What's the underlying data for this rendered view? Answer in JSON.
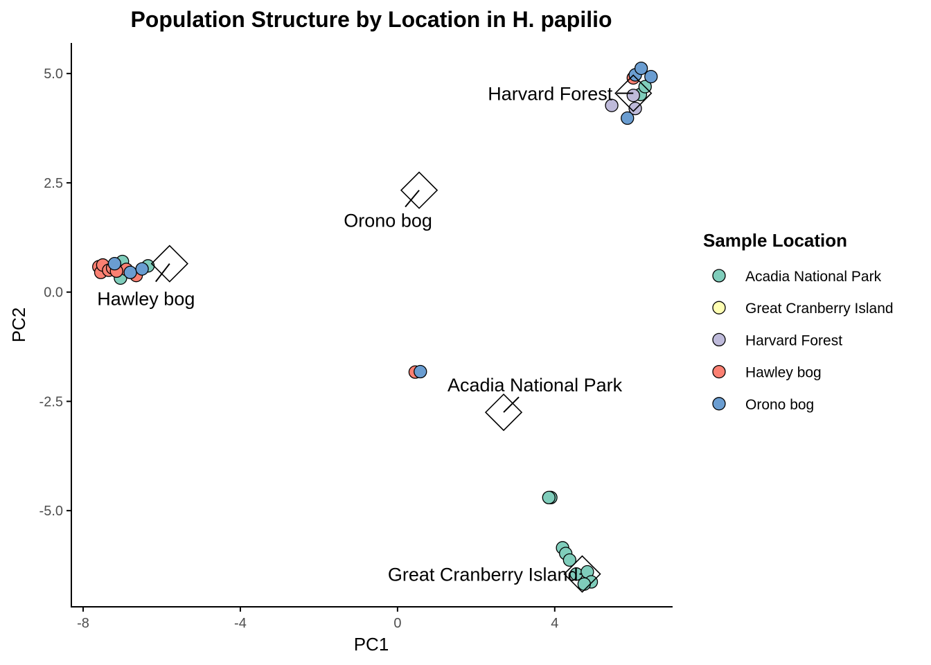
{
  "chart_data": {
    "type": "scatter",
    "title": "Population Structure by Location in H. papilio",
    "xlabel": "PC1",
    "ylabel": "PC2",
    "xlim": [
      -8.3,
      7.0
    ],
    "ylim": [
      -7.2,
      5.7
    ],
    "xticks": [
      {
        "value": -8,
        "label": "-8"
      },
      {
        "value": -4,
        "label": "-4"
      },
      {
        "value": 0,
        "label": "0"
      },
      {
        "value": 4,
        "label": "4"
      }
    ],
    "yticks": [
      {
        "value": 5.0,
        "label": "5.0"
      },
      {
        "value": 2.5,
        "label": "2.5"
      },
      {
        "value": 0.0,
        "label": "0.0"
      },
      {
        "value": -2.5,
        "label": "-2.5"
      },
      {
        "value": -5.0,
        "label": "-5.0"
      }
    ],
    "grid": false,
    "legend": {
      "title": "Sample Location",
      "position": "right"
    },
    "series": [
      {
        "name": "Acadia National Park",
        "color": "#7fcdbb",
        "points": [
          [
            -7.0,
            0.7
          ],
          [
            -7.05,
            0.32
          ],
          [
            -6.35,
            0.6
          ],
          [
            -7.45,
            0.55
          ],
          [
            3.9,
            -4.7
          ],
          [
            3.85,
            -4.7
          ],
          [
            4.2,
            -5.85
          ],
          [
            4.28,
            -5.98
          ],
          [
            4.38,
            -6.13
          ],
          [
            4.55,
            -6.45
          ],
          [
            4.83,
            -6.4
          ],
          [
            4.93,
            -6.63
          ],
          [
            4.75,
            -6.68
          ],
          [
            6.18,
            4.52
          ],
          [
            6.3,
            4.7
          ]
        ]
      },
      {
        "name": "Great Cranberry Island",
        "color": "#ffffb3",
        "points": []
      },
      {
        "name": "Harvard Forest",
        "color": "#bebada",
        "points": [
          [
            5.45,
            4.27
          ],
          [
            6.05,
            4.2
          ],
          [
            6.0,
            4.5
          ]
        ]
      },
      {
        "name": "Hawley bog",
        "color": "#fb8072",
        "points": [
          [
            -7.6,
            0.58
          ],
          [
            -7.55,
            0.45
          ],
          [
            -7.5,
            0.62
          ],
          [
            -7.35,
            0.5
          ],
          [
            -7.25,
            0.55
          ],
          [
            -6.9,
            0.52
          ],
          [
            -6.65,
            0.38
          ],
          [
            -7.15,
            0.48
          ],
          [
            0.45,
            -1.83
          ],
          [
            6.0,
            4.9
          ]
        ]
      },
      {
        "name": "Orono bog",
        "color": "#6a9dd1",
        "points": [
          [
            -7.2,
            0.65
          ],
          [
            -6.8,
            0.45
          ],
          [
            -6.5,
            0.53
          ],
          [
            0.58,
            -1.82
          ],
          [
            6.05,
            4.97
          ],
          [
            6.2,
            5.12
          ],
          [
            6.45,
            4.93
          ],
          [
            5.85,
            3.98
          ]
        ]
      }
    ],
    "centroids": [
      {
        "label": "Harvard Forest",
        "x": 6.0,
        "y": 4.55
      },
      {
        "label": "Orono bog",
        "x": 0.55,
        "y": 2.33
      },
      {
        "label": "Hawley bog",
        "x": -5.8,
        "y": 0.65
      },
      {
        "label": "Acadia National Park",
        "x": 2.7,
        "y": -2.75
      },
      {
        "label": "Great Cranberry Island",
        "x": 4.7,
        "y": -6.45
      }
    ]
  }
}
